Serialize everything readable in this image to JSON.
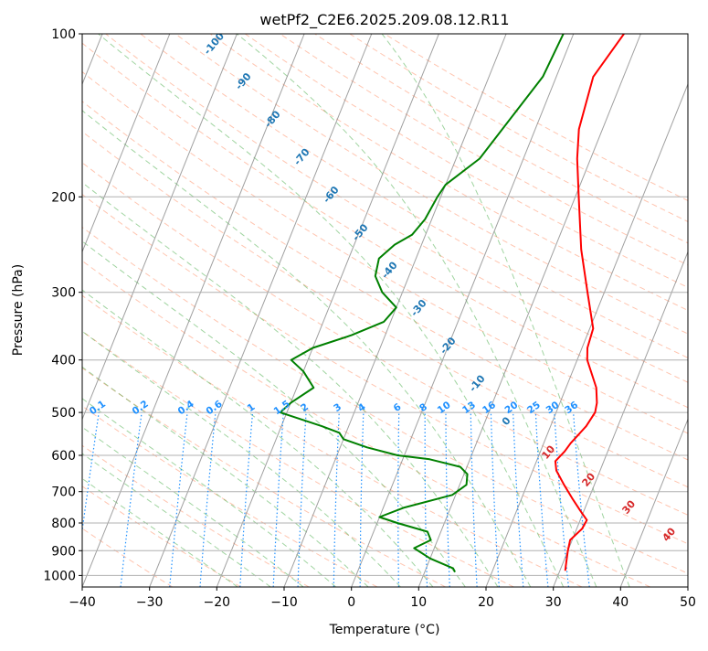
{
  "chart_data": {
    "type": "line",
    "subtype": "skew-T log-P diagram",
    "title": "wetPf2_C2E6.2025.209.08.12.R11",
    "xlabel": "Temperature (°C)",
    "ylabel": "Pressure (hPa)",
    "xlim": [
      -40,
      50
    ],
    "ylim": [
      1050,
      100
    ],
    "y_scale": "log",
    "x_ticks": [
      -40,
      -30,
      -20,
      -10,
      0,
      10,
      20,
      30,
      40,
      50
    ],
    "y_ticks": [
      100,
      200,
      300,
      400,
      500,
      600,
      700,
      800,
      900,
      1000
    ],
    "grid": true,
    "colors": {
      "temperature": "#ff0000",
      "dewpoint": "#008000",
      "isotherm": "#808080",
      "dry_adiabat": "#ff7f50",
      "moist_adiabat": "#2ca02c",
      "mixing_ratio": "#1e90ff",
      "dry_label": "#d62728",
      "moist_label": "#1f77b4",
      "frame": "#000000",
      "pressure_grid": "#b0b0b0"
    },
    "series": [
      {
        "key": "temperature",
        "points": [
          [
            100,
            7.5
          ],
          [
            120,
            5.5
          ],
          [
            150,
            6.5
          ],
          [
            170,
            8
          ],
          [
            200,
            10.5
          ],
          [
            250,
            14
          ],
          [
            300,
            17.5
          ],
          [
            350,
            20.5
          ],
          [
            380,
            20.8
          ],
          [
            400,
            21.5
          ],
          [
            450,
            24.5
          ],
          [
            480,
            25.5
          ],
          [
            500,
            25.8
          ],
          [
            530,
            25.3
          ],
          [
            570,
            24
          ],
          [
            590,
            23.6
          ],
          [
            615,
            22.8
          ],
          [
            640,
            23.5
          ],
          [
            680,
            25.5
          ],
          [
            720,
            27.5
          ],
          [
            760,
            29.5
          ],
          [
            790,
            31
          ],
          [
            820,
            30.8
          ],
          [
            860,
            29.7
          ],
          [
            900,
            30
          ],
          [
            950,
            30.5
          ],
          [
            980,
            30.8
          ]
        ]
      },
      {
        "key": "dewpoint",
        "points": [
          [
            100,
            -1.5
          ],
          [
            120,
            -2
          ],
          [
            140,
            -4
          ],
          [
            170,
            -6.5
          ],
          [
            190,
            -10
          ],
          [
            200,
            -10.5
          ],
          [
            220,
            -11
          ],
          [
            235,
            -12
          ],
          [
            245,
            -14
          ],
          [
            260,
            -15.5
          ],
          [
            280,
            -15
          ],
          [
            300,
            -13
          ],
          [
            320,
            -10
          ],
          [
            340,
            -11
          ],
          [
            360,
            -15
          ],
          [
            380,
            -20
          ],
          [
            400,
            -22.5
          ],
          [
            420,
            -20
          ],
          [
            450,
            -17.5
          ],
          [
            480,
            -20
          ],
          [
            500,
            -21
          ],
          [
            530,
            -14
          ],
          [
            545,
            -11
          ],
          [
            560,
            -10
          ],
          [
            580,
            -6
          ],
          [
            600,
            -1
          ],
          [
            610,
            4
          ],
          [
            630,
            9
          ],
          [
            650,
            10.5
          ],
          [
            680,
            11
          ],
          [
            710,
            9.5
          ],
          [
            750,
            3
          ],
          [
            780,
            0
          ],
          [
            800,
            3
          ],
          [
            830,
            8
          ],
          [
            860,
            9
          ],
          [
            890,
            7
          ],
          [
            930,
            10
          ],
          [
            970,
            14
          ],
          [
            985,
            14.5
          ]
        ]
      }
    ],
    "mixing_ratio_labels": [
      "0.1",
      "0.2",
      "0.4",
      "0.6",
      "1",
      "1.5",
      "2",
      "3",
      "4",
      "6",
      "8",
      "10",
      "13",
      "16",
      "20",
      "25",
      "30",
      "36"
    ],
    "moist_adiabat_labels": [
      "-100",
      "-90",
      "-80",
      "-70",
      "-60",
      "-50",
      "-40",
      "-30",
      "-20",
      "-10",
      "0"
    ],
    "dry_adiabat_labels": [
      "10",
      "20",
      "30",
      "40"
    ]
  }
}
